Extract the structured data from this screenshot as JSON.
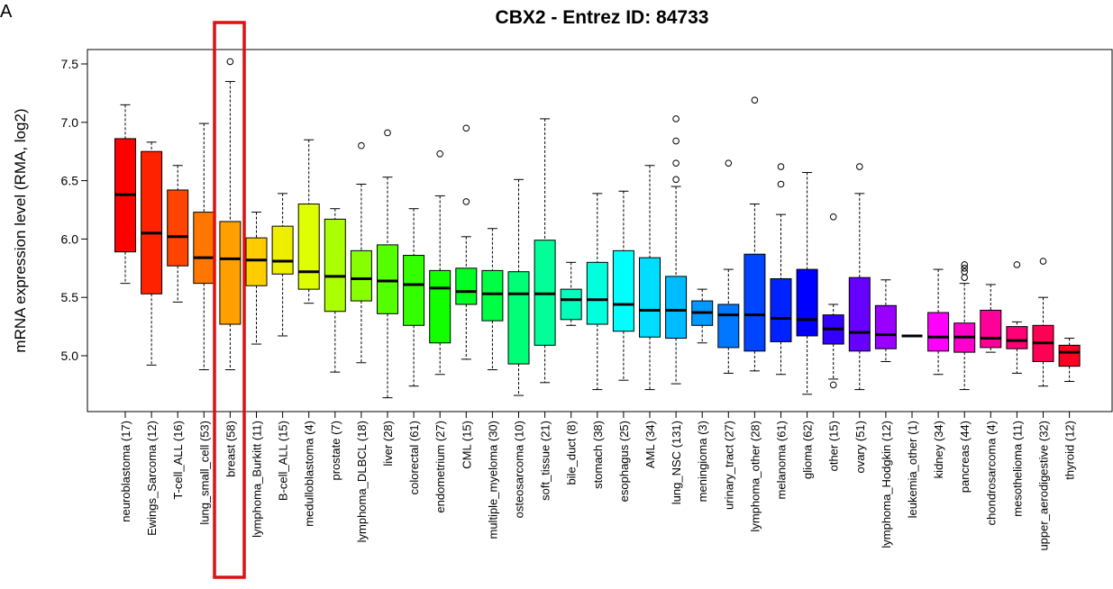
{
  "chart_data": {
    "type": "boxplot",
    "panel_label": "A",
    "title": "CBX2  -  Entrez ID: 84733",
    "ylabel": "mRNA expression level (RMA, log2)",
    "xlabel": "",
    "ylim": [
      4.55,
      7.6
    ],
    "yticks": [
      "5.0",
      "5.5",
      "6.0",
      "6.5",
      "7.0",
      "7.5"
    ],
    "grid": false,
    "legend": "none",
    "highlight": {
      "category": "breast (58)",
      "color": "#dd1111"
    },
    "boxes": [
      {
        "label": "neuroblastoma (17)",
        "color": "#ff0000",
        "wlo": 5.62,
        "q1": 5.89,
        "med": 6.38,
        "q3": 6.86,
        "whi": 7.15,
        "outliers": []
      },
      {
        "label": "Ewings_Sarcoma (12)",
        "color": "#ff2200",
        "wlo": 4.92,
        "q1": 5.53,
        "med": 6.05,
        "q3": 6.75,
        "whi": 6.83,
        "outliers": []
      },
      {
        "label": "T-cell_ALL (16)",
        "color": "#ff4400",
        "wlo": 5.46,
        "q1": 5.77,
        "med": 6.02,
        "q3": 6.42,
        "whi": 6.63,
        "outliers": []
      },
      {
        "label": "lung_small_cell (53)",
        "color": "#ff7700",
        "wlo": 4.88,
        "q1": 5.62,
        "med": 5.84,
        "q3": 6.23,
        "whi": 6.99,
        "outliers": []
      },
      {
        "label": "breast (58)",
        "color": "#ffa000",
        "wlo": 4.88,
        "q1": 5.27,
        "med": 5.83,
        "q3": 6.15,
        "whi": 7.35,
        "outliers": [
          7.52
        ]
      },
      {
        "label": "lymphoma_Burkitt (11)",
        "color": "#ffcc00",
        "wlo": 5.1,
        "q1": 5.6,
        "med": 5.82,
        "q3": 6.01,
        "whi": 6.23,
        "outliers": []
      },
      {
        "label": "B-cell_ALL (15)",
        "color": "#eeee00",
        "wlo": 5.17,
        "q1": 5.7,
        "med": 5.81,
        "q3": 6.11,
        "whi": 6.39,
        "outliers": []
      },
      {
        "label": "medulloblastoma (4)",
        "color": "#ddff00",
        "wlo": 5.45,
        "q1": 5.57,
        "med": 5.72,
        "q3": 6.3,
        "whi": 6.85,
        "outliers": []
      },
      {
        "label": "prostate (7)",
        "color": "#aaff00",
        "wlo": 4.86,
        "q1": 5.38,
        "med": 5.68,
        "q3": 6.17,
        "whi": 6.26,
        "outliers": []
      },
      {
        "label": "lymphoma_DLBCL (18)",
        "color": "#88ff00",
        "wlo": 4.94,
        "q1": 5.47,
        "med": 5.66,
        "q3": 5.9,
        "whi": 6.47,
        "outliers": [
          6.8
        ]
      },
      {
        "label": "liver (28)",
        "color": "#55ff00",
        "wlo": 4.64,
        "q1": 5.36,
        "med": 5.64,
        "q3": 5.95,
        "whi": 6.53,
        "outliers": [
          6.91
        ]
      },
      {
        "label": "colorectal (61)",
        "color": "#33ff00",
        "wlo": 4.74,
        "q1": 5.26,
        "med": 5.61,
        "q3": 5.86,
        "whi": 6.26,
        "outliers": []
      },
      {
        "label": "endometrium (27)",
        "color": "#11ff00",
        "wlo": 4.84,
        "q1": 5.11,
        "med": 5.58,
        "q3": 5.73,
        "whi": 6.37,
        "outliers": [
          6.73
        ]
      },
      {
        "label": "CML (15)",
        "color": "#00ff22",
        "wlo": 4.97,
        "q1": 5.44,
        "med": 5.55,
        "q3": 5.75,
        "whi": 6.02,
        "outliers": [
          6.32,
          6.95
        ]
      },
      {
        "label": "multiple_myeloma (30)",
        "color": "#00ff44",
        "wlo": 4.88,
        "q1": 5.3,
        "med": 5.53,
        "q3": 5.73,
        "whi": 6.09,
        "outliers": []
      },
      {
        "label": "osteosarcoma (10)",
        "color": "#00ff77",
        "wlo": 4.66,
        "q1": 4.93,
        "med": 5.53,
        "q3": 5.72,
        "whi": 6.51,
        "outliers": []
      },
      {
        "label": "soft_tissue (21)",
        "color": "#00ff99",
        "wlo": 4.77,
        "q1": 5.09,
        "med": 5.53,
        "q3": 5.99,
        "whi": 7.03,
        "outliers": []
      },
      {
        "label": "bile_duct (8)",
        "color": "#00ffbb",
        "wlo": 5.26,
        "q1": 5.31,
        "med": 5.48,
        "q3": 5.57,
        "whi": 5.8,
        "outliers": []
      },
      {
        "label": "stomach (38)",
        "color": "#00ffdd",
        "wlo": 4.71,
        "q1": 5.27,
        "med": 5.48,
        "q3": 5.8,
        "whi": 6.39,
        "outliers": []
      },
      {
        "label": "esophagus (25)",
        "color": "#00ffff",
        "wlo": 4.79,
        "q1": 5.21,
        "med": 5.44,
        "q3": 5.9,
        "whi": 6.41,
        "outliers": []
      },
      {
        "label": "AML (34)",
        "color": "#00ddff",
        "wlo": 4.71,
        "q1": 5.16,
        "med": 5.39,
        "q3": 5.84,
        "whi": 6.63,
        "outliers": []
      },
      {
        "label": "lung_NSC (131)",
        "color": "#00bbff",
        "wlo": 4.76,
        "q1": 5.15,
        "med": 5.39,
        "q3": 5.68,
        "whi": 6.45,
        "outliers": [
          6.51,
          6.65,
          6.84,
          7.03
        ]
      },
      {
        "label": "meningioma (3)",
        "color": "#0099ff",
        "wlo": 5.11,
        "q1": 5.26,
        "med": 5.37,
        "q3": 5.47,
        "whi": 5.57,
        "outliers": []
      },
      {
        "label": "urinary_tract (27)",
        "color": "#0077ff",
        "wlo": 4.85,
        "q1": 5.07,
        "med": 5.35,
        "q3": 5.44,
        "whi": 5.74,
        "outliers": [
          6.65
        ]
      },
      {
        "label": "lymphoma_other (28)",
        "color": "#0044ff",
        "wlo": 4.87,
        "q1": 5.04,
        "med": 5.35,
        "q3": 5.87,
        "whi": 6.3,
        "outliers": [
          7.19
        ]
      },
      {
        "label": "melanoma (61)",
        "color": "#0022ff",
        "wlo": 4.84,
        "q1": 5.12,
        "med": 5.32,
        "q3": 5.66,
        "whi": 6.21,
        "outliers": [
          6.47,
          6.62
        ]
      },
      {
        "label": "glioma (62)",
        "color": "#0000ff",
        "wlo": 4.67,
        "q1": 5.17,
        "med": 5.31,
        "q3": 5.74,
        "whi": 6.57,
        "outliers": []
      },
      {
        "label": "other (15)",
        "color": "#3300ff",
        "wlo": 4.8,
        "q1": 5.1,
        "med": 5.23,
        "q3": 5.35,
        "whi": 5.44,
        "outliers": [
          4.75,
          6.19
        ]
      },
      {
        "label": "ovary (51)",
        "color": "#6600ff",
        "wlo": 4.71,
        "q1": 5.04,
        "med": 5.2,
        "q3": 5.67,
        "whi": 6.39,
        "outliers": [
          6.62
        ]
      },
      {
        "label": "lymphoma_Hodgkin (12)",
        "color": "#9900ff",
        "wlo": 4.95,
        "q1": 5.06,
        "med": 5.18,
        "q3": 5.43,
        "whi": 5.65,
        "outliers": []
      },
      {
        "label": "leukemia_other (1)",
        "color": "#bb00ff",
        "wlo": 5.17,
        "q1": 5.17,
        "med": 5.17,
        "q3": 5.17,
        "whi": 5.17,
        "outliers": []
      },
      {
        "label": "kidney (34)",
        "color": "#ff00ff",
        "wlo": 4.84,
        "q1": 5.04,
        "med": 5.16,
        "q3": 5.37,
        "whi": 5.74,
        "outliers": []
      },
      {
        "label": "pancreas (44)",
        "color": "#ff00cc",
        "wlo": 4.71,
        "q1": 5.03,
        "med": 5.16,
        "q3": 5.28,
        "whi": 5.62,
        "outliers": [
          5.67,
          5.72,
          5.75,
          5.78
        ]
      },
      {
        "label": "chondrosarcoma (4)",
        "color": "#ff0099",
        "wlo": 5.03,
        "q1": 5.07,
        "med": 5.15,
        "q3": 5.39,
        "whi": 5.61,
        "outliers": []
      },
      {
        "label": "mesothelioma (11)",
        "color": "#ff0077",
        "wlo": 4.85,
        "q1": 5.06,
        "med": 5.13,
        "q3": 5.25,
        "whi": 5.29,
        "outliers": [
          5.78
        ]
      },
      {
        "label": "upper_aerodigestive (32)",
        "color": "#ff0055",
        "wlo": 4.74,
        "q1": 4.95,
        "med": 5.11,
        "q3": 5.26,
        "whi": 5.5,
        "outliers": [
          5.81
        ]
      },
      {
        "label": "thyroid (12)",
        "color": "#ff0022",
        "wlo": 4.78,
        "q1": 4.91,
        "med": 5.03,
        "q3": 5.09,
        "whi": 5.15,
        "outliers": []
      }
    ]
  }
}
